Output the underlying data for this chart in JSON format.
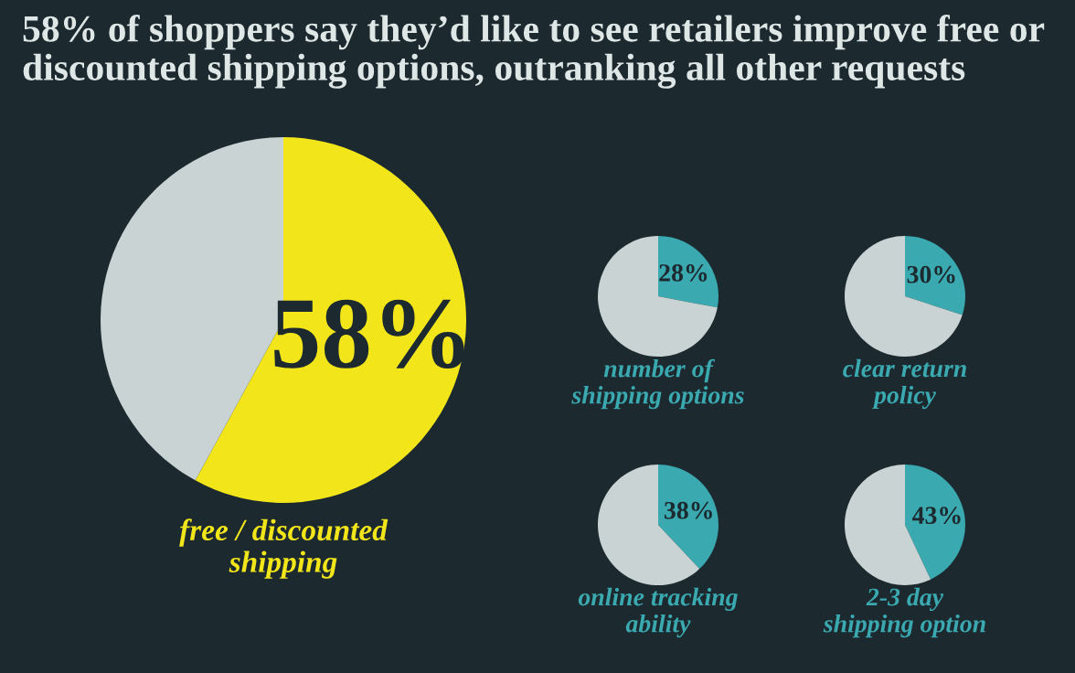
{
  "chart_data": [
    {
      "type": "pie",
      "title": "58% of shoppers say they’d like to see retailers improve free or discounted shipping options, outranking all other requests",
      "xlabel": "free / discounted shipping",
      "categories": [
        null,
        null
      ],
      "values": [
        58,
        42
      ],
      "colors": [
        "#f2e51a",
        "#c9d3d4"
      ],
      "value_labels": [
        "58%",
        null
      ]
    },
    {
      "type": "pie",
      "xlabel": "number of shipping options",
      "categories": [
        null,
        null
      ],
      "values": [
        28,
        72
      ],
      "colors": [
        "#3aa9b0",
        "#c9d3d4"
      ],
      "value_labels": [
        "28%",
        null
      ]
    },
    {
      "type": "pie",
      "xlabel": "clear return policy",
      "categories": [
        null,
        null
      ],
      "values": [
        30,
        70
      ],
      "colors": [
        "#3aa9b0",
        "#c9d3d4"
      ],
      "value_labels": [
        "30%",
        null
      ]
    },
    {
      "type": "pie",
      "xlabel": "online tracking ability",
      "categories": [
        null,
        null
      ],
      "values": [
        38,
        62
      ],
      "colors": [
        "#3aa9b0",
        "#c9d3d4"
      ],
      "value_labels": [
        "38%",
        null
      ]
    },
    {
      "type": "pie",
      "xlabel": "2-3 day shipping option",
      "categories": [
        null,
        null
      ],
      "values": [
        43,
        57
      ],
      "colors": [
        "#3aa9b0",
        "#c9d3d4"
      ],
      "value_labels": [
        "43%",
        null
      ]
    }
  ]
}
